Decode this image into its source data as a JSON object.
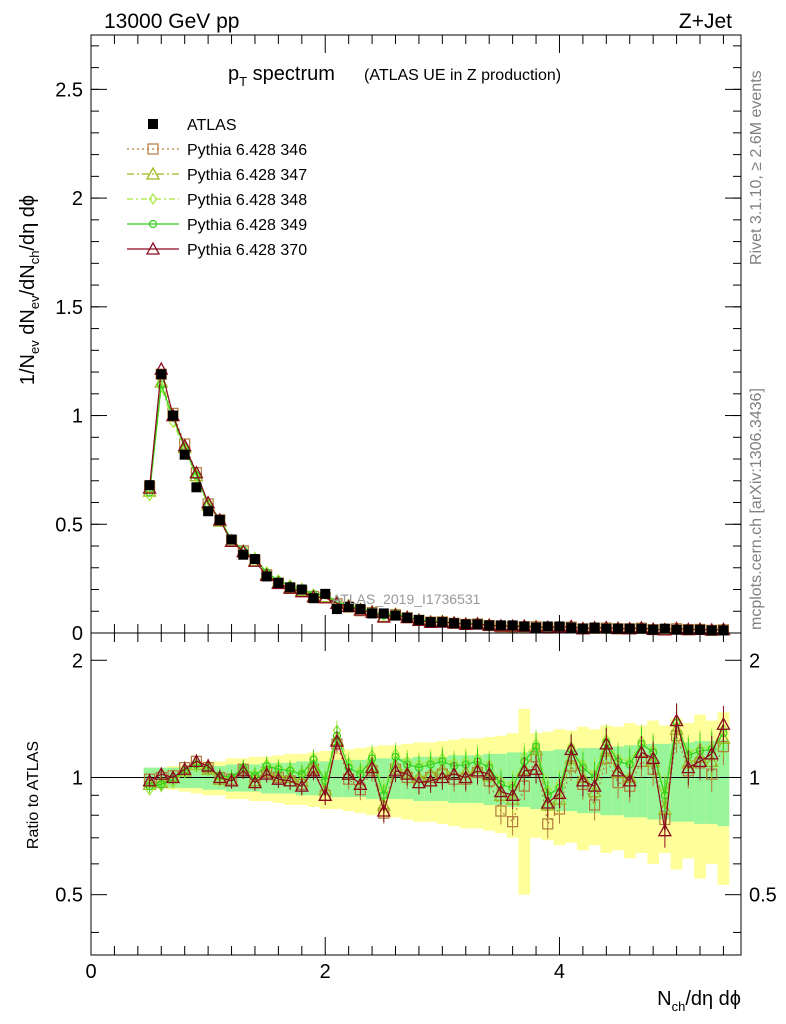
{
  "header": {
    "energy": "13000 GeV pp",
    "process": "Z+Jet"
  },
  "side_text": {
    "rivet": "Rivet 3.1.10, ≥ 2.6M events",
    "source": "mcplots.cern.ch [arXiv:1306.3436]"
  },
  "chart_data": {
    "type": "line",
    "title": {
      "main_pre": "p",
      "main_sub": "T",
      "main_post": " spectrum",
      "detail": "(ATLAS UE in Z production)"
    },
    "analysis_id": "ATLAS_2019_I1736531",
    "xlabel": {
      "pre": "N",
      "sub": "ch",
      "post": "/dη dϕ"
    },
    "ylabel": {
      "p1": "1/N",
      "s1": "ev",
      "p2": " dN",
      "s2": "ev",
      "p3": "/dN",
      "s3": "ch",
      "p4": "/dη dϕ"
    },
    "ratio_ylabel": "Ratio to ATLAS",
    "xlim": [
      0,
      5.55
    ],
    "ylim": [
      0,
      2.75
    ],
    "ratio_ylim": [
      0.35,
      2.35
    ],
    "x_ticks": [
      0,
      2,
      4
    ],
    "y_ticks": [
      0,
      0.5,
      1,
      1.5,
      2,
      2.5
    ],
    "y_tick_labels": [
      "0",
      "0.5",
      "1",
      "1.5",
      "2",
      "2.5"
    ],
    "ratio_ticks": [
      0.5,
      1,
      2
    ],
    "ratio_tick_labels": [
      "0.5",
      "1",
      "2"
    ],
    "x": [
      0.5,
      0.6,
      0.7,
      0.8,
      0.9,
      1.0,
      1.1,
      1.2,
      1.3,
      1.4,
      1.5,
      1.6,
      1.7,
      1.8,
      1.9,
      2.0,
      2.1,
      2.2,
      2.3,
      2.4,
      2.5,
      2.6,
      2.7,
      2.8,
      2.9,
      3.0,
      3.1,
      3.2,
      3.3,
      3.4,
      3.5,
      3.6,
      3.7,
      3.8,
      3.9,
      4.0,
      4.1,
      4.2,
      4.3,
      4.4,
      4.5,
      4.6,
      4.7,
      4.8,
      4.9,
      5.0,
      5.1,
      5.2,
      5.3,
      5.4
    ],
    "atlas": [
      0.68,
      1.19,
      1.0,
      0.82,
      0.67,
      0.56,
      0.52,
      0.43,
      0.36,
      0.34,
      0.26,
      0.23,
      0.21,
      0.2,
      0.16,
      0.18,
      0.11,
      0.12,
      0.11,
      0.09,
      0.09,
      0.08,
      0.07,
      0.06,
      0.05,
      0.05,
      0.045,
      0.04,
      0.04,
      0.035,
      0.035,
      0.035,
      0.03,
      0.025,
      0.03,
      0.03,
      0.025,
      0.02,
      0.025,
      0.02,
      0.02,
      0.02,
      0.02,
      0.015,
      0.02,
      0.015,
      0.015,
      0.015,
      0.012,
      0.012
    ],
    "series": [
      {
        "name": "Pythia 6.428 346",
        "color": "#b07a3c",
        "marker": "square",
        "dash": "2,3",
        "ratio": [
          0.99,
          1.0,
          1.01,
          1.06,
          1.1,
          1.06,
          1.0,
          0.99,
          1.05,
          0.98,
          1.03,
          1.0,
          0.98,
          0.96,
          1.05,
          0.9,
          1.22,
          0.99,
          0.93,
          1.04,
          0.81,
          1.05,
          1.0,
          0.97,
          1.0,
          1.02,
          0.99,
          0.99,
          1.03,
          0.98,
          0.82,
          0.77,
          0.95,
          1.13,
          0.76,
          0.83,
          1.07,
          0.96,
          0.85,
          1.12,
          0.97,
          0.95,
          1.1,
          1.05,
          0.78,
          1.28,
          1.04,
          1.09,
          1.02,
          1.2
        ]
      },
      {
        "name": "Pythia 6.428 347",
        "color": "#9ab81e",
        "marker": "triangle",
        "dash": "7,3,2,3",
        "ratio": [
          0.96,
          0.97,
          1.0,
          1.04,
          1.08,
          1.05,
          0.99,
          0.98,
          1.04,
          0.98,
          1.04,
          1.01,
          1.0,
          0.98,
          1.06,
          0.93,
          1.25,
          1.02,
          0.96,
          1.07,
          0.85,
          1.07,
          1.03,
          1.0,
          1.02,
          1.05,
          1.02,
          1.03,
          1.06,
          1.01,
          0.9,
          0.88,
          1.05,
          1.18,
          0.85,
          0.88,
          1.12,
          1.0,
          0.92,
          1.17,
          1.03,
          1.0,
          1.16,
          1.1,
          0.83,
          1.33,
          1.09,
          1.13,
          1.1,
          1.26
        ]
      },
      {
        "name": "Pythia 6.428 348",
        "color": "#a6e63c",
        "marker": "diamond",
        "dash": "6,3,2,3",
        "ratio": [
          0.93,
          0.95,
          0.97,
          1.03,
          1.07,
          1.05,
          1.0,
          1.0,
          1.06,
          1.02,
          1.08,
          1.06,
          1.05,
          1.03,
          1.12,
          0.99,
          1.32,
          1.09,
          1.04,
          1.14,
          0.93,
          1.15,
          1.1,
          1.08,
          1.1,
          1.12,
          1.09,
          1.1,
          1.12,
          1.08,
          0.98,
          0.96,
          1.13,
          1.22,
          0.93,
          0.96,
          1.2,
          1.08,
          1.02,
          1.25,
          1.12,
          1.1,
          1.24,
          1.18,
          0.92,
          1.39,
          1.16,
          1.19,
          1.2,
          1.33
        ]
      },
      {
        "name": "Pythia 6.428 349",
        "color": "#33d11a",
        "marker": "circle",
        "dash": "",
        "ratio": [
          0.95,
          0.96,
          0.99,
          1.04,
          1.08,
          1.06,
          1.01,
          1.0,
          1.06,
          1.01,
          1.07,
          1.05,
          1.04,
          1.02,
          1.11,
          0.98,
          1.28,
          1.06,
          1.02,
          1.12,
          0.9,
          1.13,
          1.08,
          1.06,
          1.08,
          1.1,
          1.07,
          1.08,
          1.1,
          1.06,
          0.96,
          0.94,
          1.1,
          1.2,
          0.9,
          0.94,
          1.18,
          1.06,
          1.0,
          1.23,
          1.1,
          1.08,
          1.22,
          1.16,
          0.9,
          1.38,
          1.14,
          1.17,
          1.18,
          1.3
        ]
      },
      {
        "name": "Pythia 6.428 370",
        "color": "#8b0a1e",
        "marker": "triangle-open",
        "dash": "",
        "ratio": [
          0.98,
          1.02,
          1.0,
          1.05,
          1.1,
          1.07,
          1.0,
          0.98,
          1.04,
          0.97,
          1.02,
          0.99,
          0.98,
          0.95,
          1.04,
          0.9,
          1.24,
          1.02,
          0.96,
          1.06,
          0.82,
          1.04,
          1.02,
          0.97,
          0.98,
          1.0,
          1.02,
          1.0,
          1.04,
          1.02,
          0.92,
          0.9,
          1.04,
          1.05,
          0.86,
          0.91,
          1.18,
          0.98,
          0.95,
          1.22,
          1.04,
          0.98,
          1.16,
          1.12,
          0.73,
          1.4,
          1.06,
          1.1,
          1.15,
          1.37
        ]
      }
    ],
    "band_green": [
      0.06,
      0.06,
      0.06,
      0.06,
      0.06,
      0.07,
      0.07,
      0.08,
      0.08,
      0.08,
      0.09,
      0.09,
      0.09,
      0.1,
      0.1,
      0.1,
      0.11,
      0.11,
      0.11,
      0.12,
      0.12,
      0.12,
      0.12,
      0.13,
      0.13,
      0.13,
      0.14,
      0.14,
      0.14,
      0.15,
      0.15,
      0.16,
      0.16,
      0.17,
      0.17,
      0.18,
      0.18,
      0.19,
      0.19,
      0.2,
      0.2,
      0.21,
      0.21,
      0.22,
      0.22,
      0.23,
      0.23,
      0.24,
      0.24,
      0.25
    ],
    "band_yellow": [
      0.06,
      0.06,
      0.07,
      0.08,
      0.09,
      0.1,
      0.1,
      0.12,
      0.12,
      0.13,
      0.13,
      0.14,
      0.15,
      0.15,
      0.16,
      0.17,
      0.17,
      0.18,
      0.19,
      0.2,
      0.21,
      0.21,
      0.22,
      0.23,
      0.23,
      0.24,
      0.25,
      0.26,
      0.26,
      0.27,
      0.28,
      0.3,
      0.5,
      0.3,
      0.31,
      0.33,
      0.32,
      0.35,
      0.33,
      0.36,
      0.35,
      0.38,
      0.36,
      0.4,
      0.36,
      0.42,
      0.38,
      0.45,
      0.4,
      0.47
    ],
    "grid": false,
    "legend_position": "top-left"
  }
}
